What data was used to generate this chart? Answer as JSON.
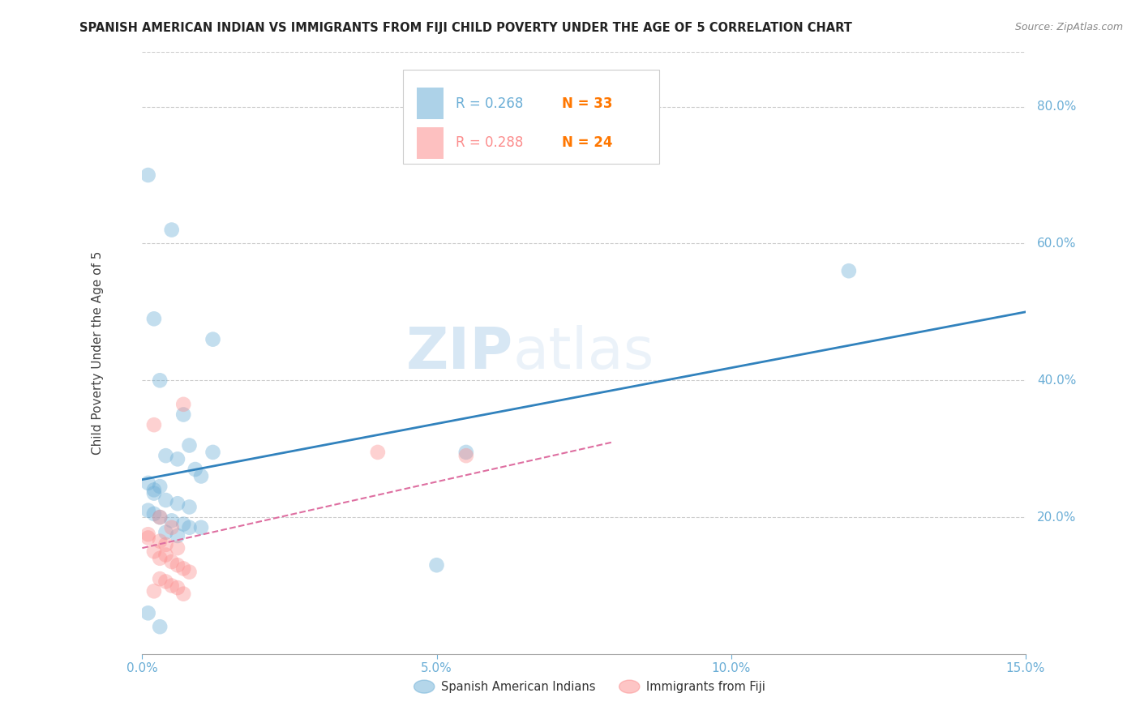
{
  "title": "SPANISH AMERICAN INDIAN VS IMMIGRANTS FROM FIJI CHILD POVERTY UNDER THE AGE OF 5 CORRELATION CHART",
  "source": "Source: ZipAtlas.com",
  "ylabel": "Child Poverty Under the Age of 5",
  "y_tick_labels": [
    "80.0%",
    "60.0%",
    "40.0%",
    "20.0%"
  ],
  "y_tick_values": [
    0.8,
    0.6,
    0.4,
    0.2
  ],
  "x_min": 0.0,
  "x_max": 0.15,
  "y_min": 0.0,
  "y_max": 0.88,
  "legend1_r": "R = 0.268",
  "legend1_n": "N = 33",
  "legend2_r": "R = 0.288",
  "legend2_n": "N = 24",
  "legend_label1": "Spanish American Indians",
  "legend_label2": "Immigrants from Fiji",
  "blue_color": "#6BAED6",
  "pink_color": "#FC8D8D",
  "trendline_blue": "#3182BD",
  "trendline_pink": "#DE6FA1",
  "grid_color": "#CCCCCC",
  "watermark_color": "#BDD7EE",
  "blue_scatter_x": [
    0.001,
    0.005,
    0.012,
    0.002,
    0.003,
    0.007,
    0.008,
    0.004,
    0.006,
    0.009,
    0.01,
    0.003,
    0.002,
    0.004,
    0.006,
    0.008,
    0.001,
    0.002,
    0.003,
    0.005,
    0.007,
    0.01,
    0.012,
    0.004,
    0.006,
    0.001,
    0.003,
    0.05,
    0.12,
    0.002,
    0.008,
    0.055,
    0.001
  ],
  "blue_scatter_y": [
    0.7,
    0.62,
    0.46,
    0.49,
    0.4,
    0.35,
    0.305,
    0.29,
    0.285,
    0.27,
    0.26,
    0.245,
    0.235,
    0.225,
    0.22,
    0.215,
    0.21,
    0.205,
    0.2,
    0.195,
    0.19,
    0.185,
    0.295,
    0.178,
    0.173,
    0.06,
    0.04,
    0.13,
    0.56,
    0.24,
    0.185,
    0.295,
    0.25
  ],
  "pink_scatter_x": [
    0.002,
    0.007,
    0.003,
    0.005,
    0.001,
    0.003,
    0.004,
    0.006,
    0.002,
    0.004,
    0.003,
    0.005,
    0.006,
    0.007,
    0.008,
    0.003,
    0.004,
    0.005,
    0.006,
    0.002,
    0.007,
    0.04,
    0.055,
    0.001
  ],
  "pink_scatter_y": [
    0.335,
    0.365,
    0.2,
    0.185,
    0.17,
    0.165,
    0.16,
    0.155,
    0.15,
    0.145,
    0.14,
    0.135,
    0.13,
    0.125,
    0.12,
    0.11,
    0.106,
    0.1,
    0.097,
    0.092,
    0.088,
    0.295,
    0.29,
    0.175
  ],
  "blue_trendline_x": [
    0.0,
    0.15
  ],
  "blue_trendline_y": [
    0.255,
    0.5
  ],
  "pink_trendline_x": [
    0.0,
    0.08
  ],
  "pink_trendline_y": [
    0.155,
    0.31
  ],
  "x_tick_positions": [
    0.0,
    0.05,
    0.1,
    0.15
  ],
  "x_tick_labels": [
    "0.0%",
    "5.0%",
    "10.0%",
    "15.0%"
  ]
}
